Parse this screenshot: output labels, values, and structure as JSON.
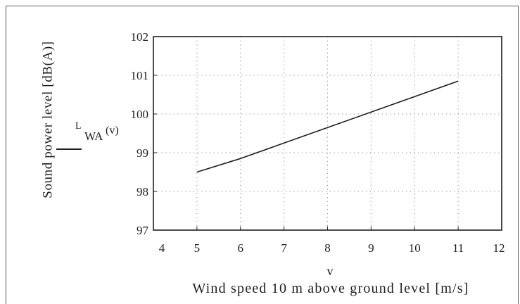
{
  "chart_data": {
    "type": "line",
    "x": [
      5,
      6,
      7,
      8,
      9,
      10,
      11
    ],
    "series": [
      {
        "values": [
          98.5,
          98.85,
          99.25,
          99.65,
          100.05,
          100.45,
          100.85
        ]
      }
    ],
    "xlabel": "Wind speed 10 m above ground level [m/s]",
    "ylabel": "Sound power level [dB(A)]",
    "x_variable": "v",
    "y_variable": {
      "symbol": "L",
      "subscript": "WA",
      "argument": "(v)"
    },
    "xlim": [
      4,
      12
    ],
    "ylim": [
      97,
      102
    ],
    "xticks": [
      4,
      5,
      6,
      7,
      8,
      9,
      10,
      11,
      12
    ],
    "yticks": [
      97,
      98,
      99,
      100,
      101,
      102
    ],
    "grid": true,
    "line_color": "#1e1e1e",
    "axis_color": "#1e1e1e",
    "grid_color": "#8a8a8a"
  }
}
